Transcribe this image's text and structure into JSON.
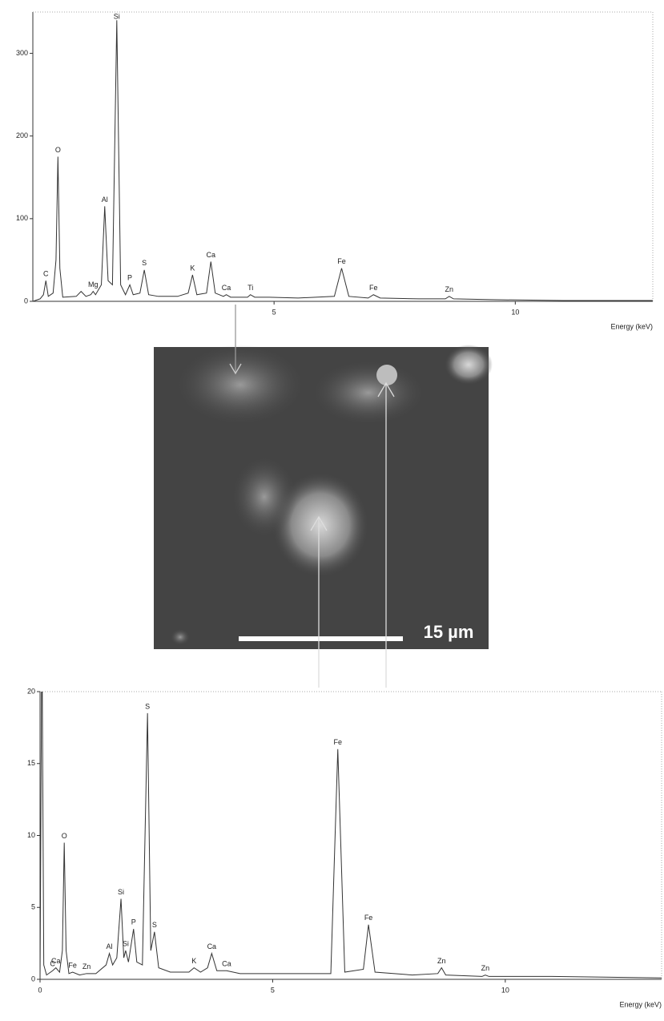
{
  "chart_data": [
    {
      "type": "line",
      "x_label": "Energy (keV)",
      "color": "#333333",
      "xlim": [
        0,
        12.85
      ],
      "ylim": [
        0,
        350
      ],
      "xticks": [
        5,
        10
      ],
      "yticks": [
        0,
        100,
        200,
        300
      ],
      "x": [
        0,
        0.15,
        0.22,
        0.27,
        0.32,
        0.42,
        0.48,
        0.52,
        0.56,
        0.62,
        0.9,
        1.0,
        1.1,
        1.2,
        1.25,
        1.3,
        1.42,
        1.49,
        1.56,
        1.65,
        1.74,
        1.82,
        1.92,
        2.01,
        2.08,
        2.22,
        2.31,
        2.4,
        2.6,
        3.0,
        3.22,
        3.31,
        3.4,
        3.6,
        3.69,
        3.78,
        3.95,
        4.01,
        4.1,
        4.45,
        4.51,
        4.6,
        4.9,
        5.5,
        6.25,
        6.4,
        6.55,
        6.95,
        7.06,
        7.2,
        8.0,
        8.55,
        8.63,
        8.72,
        9.5,
        11,
        12.85
      ],
      "values": [
        0,
        3,
        8,
        25,
        6,
        10,
        50,
        175,
        40,
        5,
        6,
        12,
        6,
        8,
        12,
        8,
        20,
        115,
        25,
        20,
        340,
        20,
        8,
        20,
        8,
        10,
        38,
        8,
        6,
        6,
        10,
        32,
        8,
        10,
        48,
        10,
        6,
        8,
        5,
        5,
        8,
        5,
        5,
        4,
        6,
        40,
        6,
        4,
        8,
        4,
        3,
        3,
        6,
        3,
        2,
        1,
        1
      ],
      "annotations": [
        {
          "text": "C",
          "x": 0.27,
          "y": 25
        },
        {
          "text": "O",
          "x": 0.52,
          "y": 175
        },
        {
          "text": "Mg",
          "x": 1.25,
          "y": 12
        },
        {
          "text": "Al",
          "x": 1.49,
          "y": 115
        },
        {
          "text": "Si",
          "x": 1.74,
          "y": 340
        },
        {
          "text": "P",
          "x": 2.01,
          "y": 20
        },
        {
          "text": "S",
          "x": 2.31,
          "y": 38
        },
        {
          "text": "K",
          "x": 3.31,
          "y": 32
        },
        {
          "text": "Ca",
          "x": 3.69,
          "y": 48
        },
        {
          "text": "Ca",
          "x": 4.01,
          "y": 8
        },
        {
          "text": "Ti",
          "x": 4.51,
          "y": 8
        },
        {
          "text": "Fe",
          "x": 6.4,
          "y": 40
        },
        {
          "text": "Fe",
          "x": 7.06,
          "y": 8
        },
        {
          "text": "Zn",
          "x": 8.63,
          "y": 6
        }
      ]
    },
    {
      "type": "line",
      "x_label": "Energy (keV)",
      "color": "#333333",
      "xlim": [
        0,
        13.36
      ],
      "ylim": [
        0,
        20
      ],
      "xticks": [
        0,
        5,
        10
      ],
      "yticks": [
        0,
        5,
        10,
        15,
        20
      ],
      "x": [
        0,
        0.04,
        0.08,
        0.14,
        0.27,
        0.34,
        0.42,
        0.48,
        0.52,
        0.56,
        0.62,
        0.7,
        0.85,
        1.0,
        1.2,
        1.42,
        1.49,
        1.56,
        1.65,
        1.74,
        1.8,
        1.84,
        1.9,
        2.01,
        2.08,
        2.2,
        2.31,
        2.38,
        2.46,
        2.55,
        2.8,
        3.2,
        3.31,
        3.45,
        3.6,
        3.69,
        3.8,
        4.01,
        4.3,
        5.5,
        6.25,
        6.4,
        6.55,
        6.95,
        7.06,
        7.2,
        8.0,
        8.55,
        8.63,
        8.72,
        9.5,
        9.57,
        9.65,
        11,
        13.36
      ],
      "values": [
        0,
        25,
        1.0,
        0.3,
        0.6,
        0.8,
        0.5,
        2,
        9.5,
        2,
        0.4,
        0.5,
        0.3,
        0.4,
        0.4,
        1.0,
        1.8,
        1.0,
        1.5,
        5.6,
        1.5,
        2.0,
        1.2,
        3.5,
        1.2,
        1.0,
        18.5,
        2,
        3.3,
        0.8,
        0.5,
        0.5,
        0.8,
        0.5,
        0.8,
        1.8,
        0.6,
        0.6,
        0.4,
        0.4,
        0.4,
        16,
        0.5,
        0.7,
        3.8,
        0.5,
        0.3,
        0.4,
        0.8,
        0.3,
        0.2,
        0.3,
        0.2,
        0.2,
        0.1
      ],
      "annotations": [
        {
          "text": "C",
          "x": 0.27,
          "y": 0.6
        },
        {
          "text": "Ca",
          "x": 0.34,
          "y": 0.8
        },
        {
          "text": "O",
          "x": 0.52,
          "y": 9.5
        },
        {
          "text": "Fe",
          "x": 0.7,
          "y": 0.5
        },
        {
          "text": "Zn",
          "x": 1.0,
          "y": 0.4
        },
        {
          "text": "Al",
          "x": 1.49,
          "y": 1.8
        },
        {
          "text": "Si",
          "x": 1.74,
          "y": 5.6
        },
        {
          "text": "Si",
          "x": 1.84,
          "y": 2.0
        },
        {
          "text": "P",
          "x": 2.01,
          "y": 3.5
        },
        {
          "text": "S",
          "x": 2.31,
          "y": 18.5
        },
        {
          "text": "S",
          "x": 2.46,
          "y": 3.3
        },
        {
          "text": "K",
          "x": 3.31,
          "y": 0.8
        },
        {
          "text": "Ca",
          "x": 3.69,
          "y": 1.8
        },
        {
          "text": "Ca",
          "x": 4.01,
          "y": 0.6
        },
        {
          "text": "Fe",
          "x": 6.4,
          "y": 16
        },
        {
          "text": "Fe",
          "x": 7.06,
          "y": 3.8
        },
        {
          "text": "Zn",
          "x": 8.63,
          "y": 0.8
        },
        {
          "text": "Zn",
          "x": 9.57,
          "y": 0.3
        }
      ]
    }
  ],
  "image": {
    "scale_bar": "15 µm"
  }
}
